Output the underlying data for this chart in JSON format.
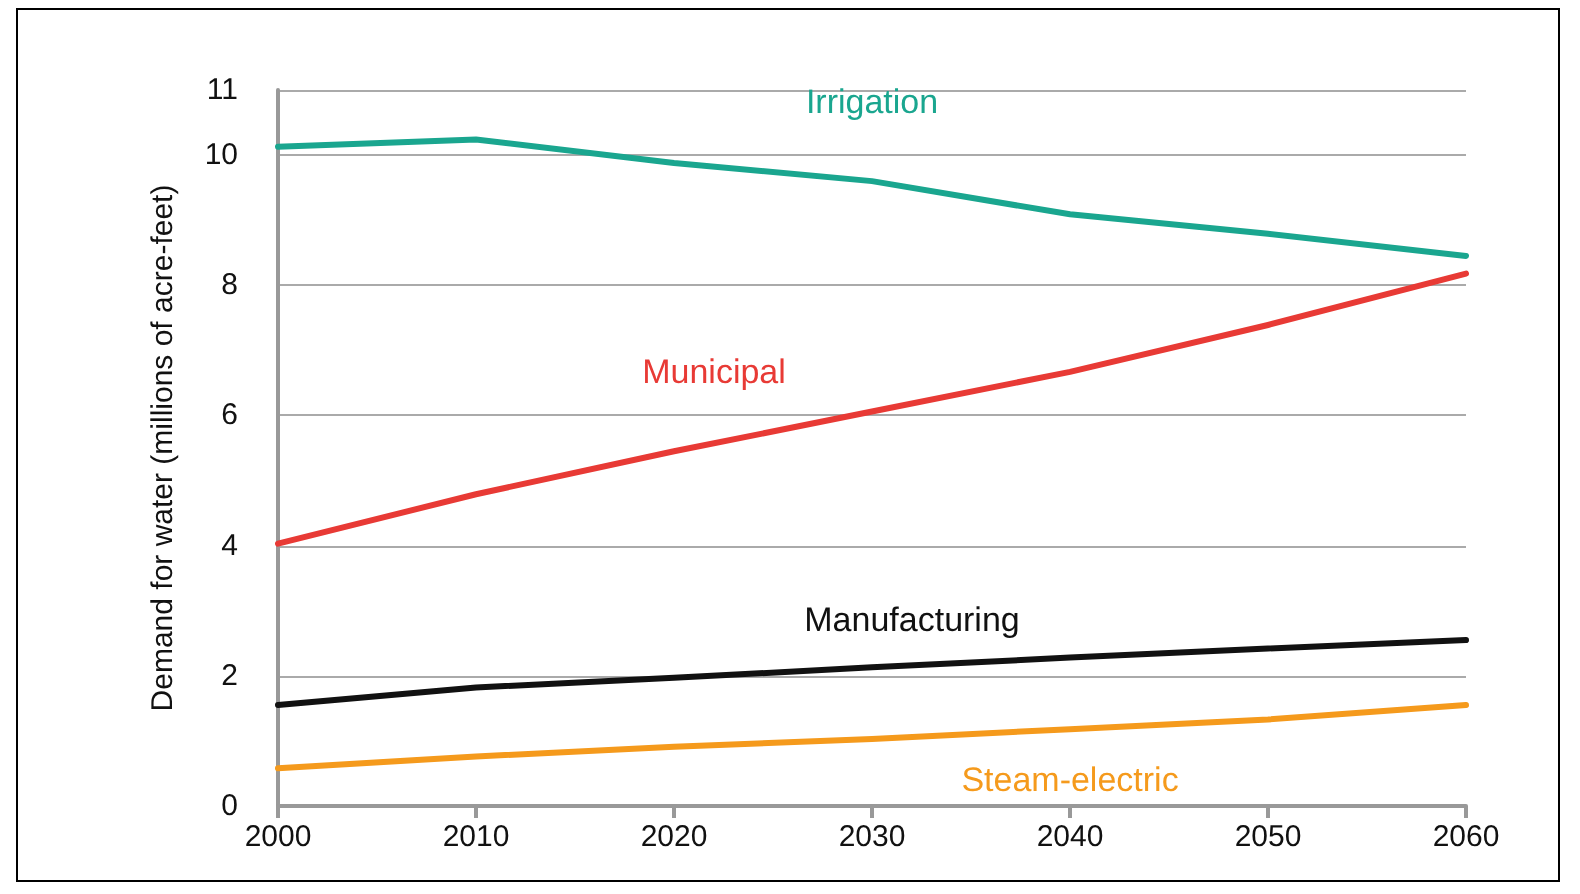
{
  "chart_data": {
    "type": "line",
    "ylabel": "Demand for water (millions of acre-feet)",
    "x": [
      2000,
      2010,
      2020,
      2030,
      2040,
      2050,
      2060
    ],
    "xlim": [
      2000,
      2060
    ],
    "xticks": [
      2000,
      2010,
      2020,
      2030,
      2040,
      2050,
      2060
    ],
    "ylim": [
      0,
      11
    ],
    "yticks": [
      0,
      2,
      4,
      6,
      8,
      10,
      11
    ],
    "grid": "y",
    "legend": false,
    "marker": "none",
    "line_style": "solid",
    "series": [
      {
        "name": "Irrigation",
        "color": "#1aa68f",
        "values": [
          10.13,
          10.24,
          9.88,
          9.6,
          9.09,
          8.79,
          8.45
        ]
      },
      {
        "name": "Municipal",
        "color": "#e83a35",
        "values": [
          4.03,
          4.79,
          5.45,
          6.06,
          6.67,
          7.39,
          8.18
        ]
      },
      {
        "name": "Manufacturing",
        "color": "#111111",
        "values": [
          1.55,
          1.82,
          1.97,
          2.13,
          2.28,
          2.42,
          2.55
        ]
      },
      {
        "name": "Steam-electric",
        "color": "#f59a1c",
        "values": [
          0.58,
          0.76,
          0.91,
          1.03,
          1.18,
          1.33,
          1.55
        ]
      }
    ]
  }
}
